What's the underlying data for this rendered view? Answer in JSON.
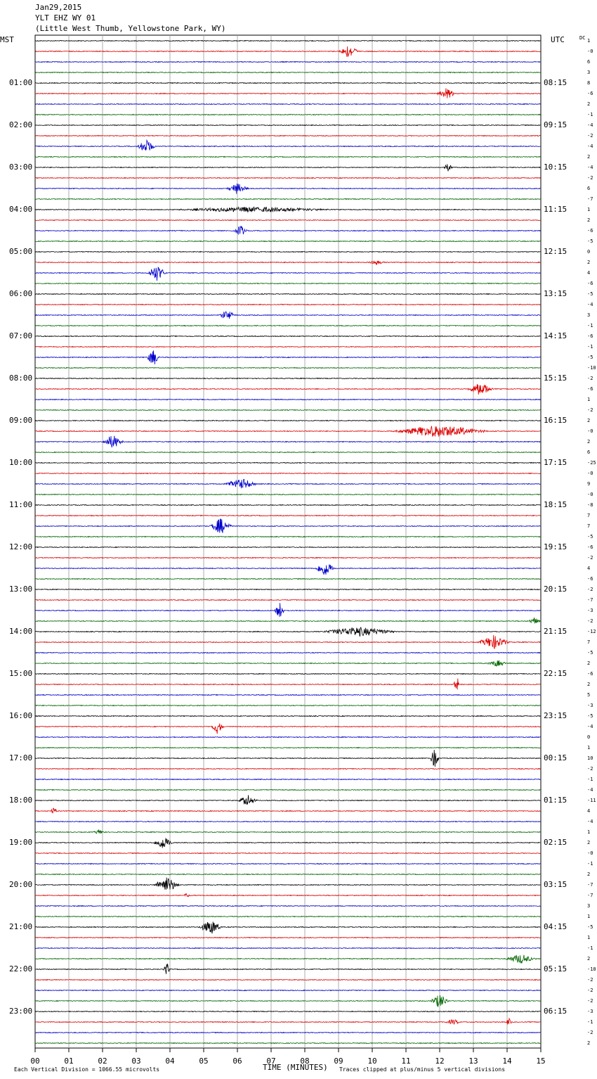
{
  "header": {
    "date": "Jan29,2015",
    "station": "YLT EHZ WY 01",
    "location": "(Little West Thumb, Yellowstone Park, WY)"
  },
  "left_tz": "MST",
  "right_tz": "UTC",
  "dc_label": "DC",
  "x_axis_label": "TIME (MINUTES)",
  "footer": {
    "scale": "Each Vertical Division = 1066.55 microvolts",
    "clip": "Traces clipped at plus/minus 5 vertical divisions"
  },
  "chart_data": {
    "type": "line",
    "title": "YLT EHZ WY 01",
    "xlabel": "TIME (MINUTES)",
    "xlim": [
      0,
      15
    ],
    "x_ticks": [
      "00",
      "01",
      "02",
      "03",
      "04",
      "05",
      "06",
      "07",
      "08",
      "09",
      "10",
      "11",
      "12",
      "13",
      "14",
      "15"
    ],
    "traces_per_hour": 4,
    "trace_minutes": 15,
    "trace_colors": [
      "#000000",
      "#dd0000",
      "#0000cc",
      "#006600"
    ],
    "left_hour_labels": [
      "01:00",
      "02:00",
      "03:00",
      "04:00",
      "05:00",
      "06:00",
      "07:00",
      "08:00",
      "09:00",
      "10:00",
      "11:00",
      "12:00",
      "13:00",
      "14:00",
      "15:00",
      "16:00",
      "17:00",
      "18:00",
      "19:00",
      "20:00",
      "21:00",
      "22:00",
      "23:00"
    ],
    "right_hour_labels": [
      "08:15",
      "09:15",
      "10:15",
      "11:15",
      "12:15",
      "13:15",
      "14:15",
      "15:15",
      "16:15",
      "17:15",
      "18:15",
      "19:15",
      "20:15",
      "21:15",
      "22:15",
      "23:15",
      "00:15",
      "01:15",
      "02:15",
      "03:15",
      "04:15",
      "05:15",
      "06:15"
    ],
    "dc_offsets": [
      "1",
      "-0",
      "6",
      "3",
      "8",
      "-6",
      "2",
      "-1",
      "-4",
      "-2",
      "-4",
      "2",
      "-4",
      "-2",
      "6",
      "-7",
      "1",
      "2",
      "-6",
      "-5",
      "0",
      "2",
      "4",
      "-6",
      "-5",
      "-4",
      "3",
      "-1",
      "-6",
      "-1",
      "-5",
      "-10",
      "-2",
      "-6",
      "1",
      "-2",
      "2",
      "-0",
      "2",
      "6",
      "-25",
      "-0",
      "9",
      "-0",
      "-8",
      "7",
      "7",
      "-5",
      "-6",
      "-2",
      "4",
      "-6",
      "-2",
      "-7",
      "-3",
      "-2",
      "-12",
      "7",
      "-5",
      "2",
      "-6",
      "2",
      "5",
      "-3",
      "-5",
      "-4",
      "0",
      "1",
      "10",
      "-2",
      "-1",
      "-4",
      "-11",
      "4",
      "-4",
      "1",
      "2",
      "-0",
      "-1",
      "2",
      "-7",
      "-7",
      "3",
      "1",
      "-5",
      "1",
      "-1",
      "2",
      "-10",
      "-2",
      "-2",
      "-2",
      "-3",
      "-1",
      "-2",
      "2"
    ],
    "events": [
      {
        "trace": 1,
        "minute": 9.3,
        "amp": 1.0,
        "width": 0.3
      },
      {
        "trace": 5,
        "minute": 12.2,
        "amp": 0.8,
        "width": 0.3
      },
      {
        "trace": 10,
        "minute": 3.3,
        "amp": 1.0,
        "width": 0.3
      },
      {
        "trace": 12,
        "minute": 12.25,
        "amp": 0.6,
        "width": 0.15
      },
      {
        "trace": 14,
        "minute": 6.0,
        "amp": 0.8,
        "width": 0.35
      },
      {
        "trace": 16,
        "minute": 6.5,
        "amp": 0.4,
        "width": 2.5
      },
      {
        "trace": 18,
        "minute": 6.1,
        "amp": 0.8,
        "width": 0.2
      },
      {
        "trace": 21,
        "minute": 10.1,
        "amp": 0.35,
        "width": 0.3
      },
      {
        "trace": 22,
        "minute": 3.6,
        "amp": 1.2,
        "width": 0.3
      },
      {
        "trace": 26,
        "minute": 5.7,
        "amp": 0.8,
        "width": 0.25
      },
      {
        "trace": 30,
        "minute": 3.5,
        "amp": 1.3,
        "width": 0.2
      },
      {
        "trace": 33,
        "minute": 13.2,
        "amp": 1.0,
        "width": 0.4
      },
      {
        "trace": 37,
        "minute": 12.0,
        "amp": 0.9,
        "width": 1.5
      },
      {
        "trace": 38,
        "minute": 2.3,
        "amp": 1.0,
        "width": 0.35
      },
      {
        "trace": 42,
        "minute": 6.1,
        "amp": 0.8,
        "width": 0.5
      },
      {
        "trace": 46,
        "minute": 5.5,
        "amp": 1.2,
        "width": 0.35
      },
      {
        "trace": 50,
        "minute": 8.6,
        "amp": 1.2,
        "width": 0.3
      },
      {
        "trace": 54,
        "minute": 7.25,
        "amp": 1.3,
        "width": 0.15
      },
      {
        "trace": 55,
        "minute": 14.8,
        "amp": 0.5,
        "width": 0.2
      },
      {
        "trace": 56,
        "minute": 9.6,
        "amp": 0.7,
        "width": 1.2
      },
      {
        "trace": 57,
        "minute": 13.6,
        "amp": 1.0,
        "width": 0.5
      },
      {
        "trace": 59,
        "minute": 13.7,
        "amp": 0.5,
        "width": 0.3
      },
      {
        "trace": 61,
        "minute": 12.5,
        "amp": 1.3,
        "width": 0.1
      },
      {
        "trace": 65,
        "minute": 5.4,
        "amp": 1.0,
        "width": 0.2
      },
      {
        "trace": 68,
        "minute": 11.85,
        "amp": 1.5,
        "width": 0.15
      },
      {
        "trace": 72,
        "minute": 6.3,
        "amp": 0.8,
        "width": 0.3
      },
      {
        "trace": 73,
        "minute": 0.55,
        "amp": 0.7,
        "width": 0.1
      },
      {
        "trace": 75,
        "minute": 1.9,
        "amp": 0.4,
        "width": 0.2
      },
      {
        "trace": 76,
        "minute": 3.8,
        "amp": 1.0,
        "width": 0.3
      },
      {
        "trace": 80,
        "minute": 3.9,
        "amp": 1.2,
        "width": 0.4
      },
      {
        "trace": 81,
        "minute": 4.5,
        "amp": 0.4,
        "width": 0.1
      },
      {
        "trace": 84,
        "minute": 5.2,
        "amp": 1.1,
        "width": 0.35
      },
      {
        "trace": 87,
        "minute": 14.4,
        "amp": 0.7,
        "width": 0.5
      },
      {
        "trace": 88,
        "minute": 3.9,
        "amp": 1.1,
        "width": 0.1
      },
      {
        "trace": 91,
        "minute": 12.0,
        "amp": 1.0,
        "width": 0.3
      },
      {
        "trace": 93,
        "minute": 12.4,
        "amp": 0.4,
        "width": 0.25
      },
      {
        "trace": 93,
        "minute": 14.05,
        "amp": 0.6,
        "width": 0.1
      }
    ]
  }
}
